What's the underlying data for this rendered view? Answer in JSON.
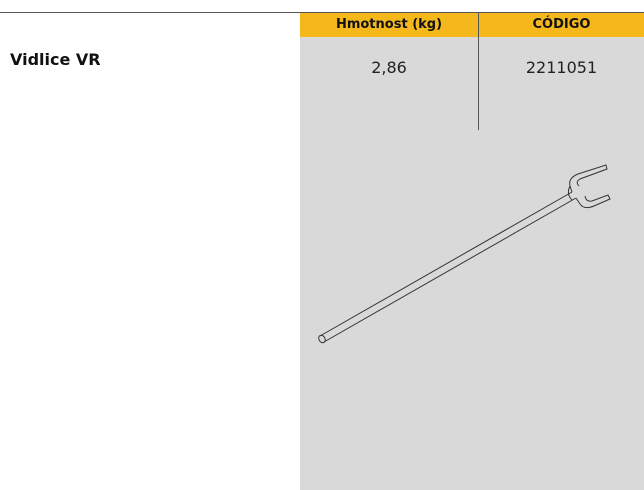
{
  "product": {
    "name": "Vidlice VR"
  },
  "table": {
    "headers": [
      "Hmotnost (kg)",
      "CÓDIGO"
    ],
    "rows": [
      [
        "2,86",
        "2211051"
      ]
    ]
  }
}
